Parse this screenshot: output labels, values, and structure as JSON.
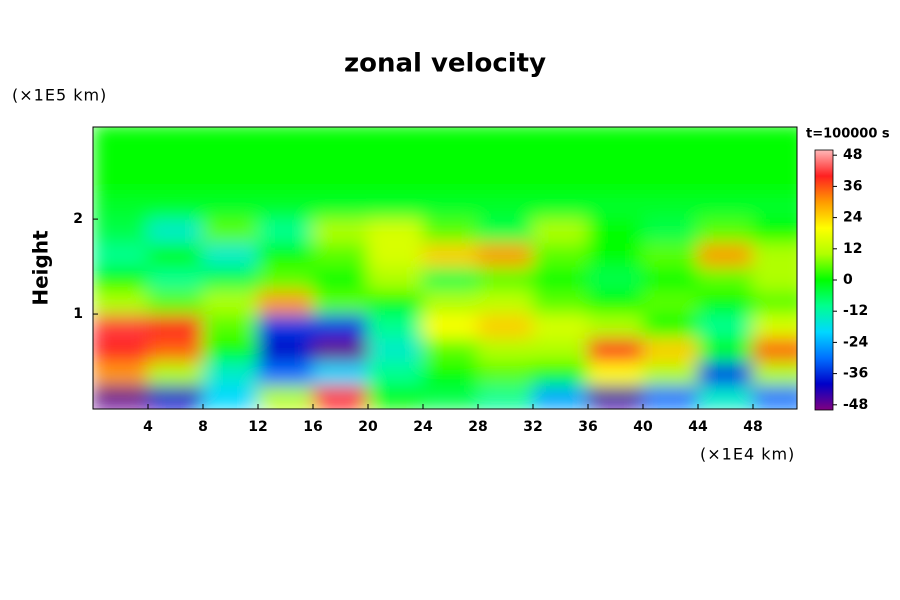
{
  "chart_data": {
    "type": "heatmap",
    "title": "zonal velocity",
    "y_unit_label": "(×1E5 km)",
    "x_unit_label": "(×1E4 km)",
    "y_label": "Height",
    "colorbar_title": "t=100000 s",
    "xlim": [
      0,
      51.2
    ],
    "ylim": [
      0,
      2.97
    ],
    "xticks": [
      4,
      8,
      12,
      16,
      20,
      24,
      28,
      32,
      36,
      40,
      44,
      48
    ],
    "yticks": [
      1,
      2
    ],
    "clim": [
      -50,
      50
    ],
    "cticks": [
      48,
      36,
      24,
      12,
      0,
      -12,
      -24,
      -36,
      -48
    ],
    "colormap": [
      "#800080",
      "#0000c8",
      "#0070ff",
      "#00d8ff",
      "#00ff90",
      "#00ff00",
      "#b0ff00",
      "#ffff00",
      "#ff9a00",
      "#ff2020",
      "#ffb8b8"
    ],
    "x": [
      2,
      6,
      10,
      14,
      18,
      22,
      26,
      30,
      34,
      38,
      42,
      46,
      50
    ],
    "y": [
      0.125,
      0.375,
      0.625,
      0.875,
      1.125,
      1.375,
      1.625,
      1.875,
      2.125,
      2.375,
      2.625,
      2.875
    ],
    "z": [
      [
        -48,
        -40,
        -20,
        10,
        40,
        0,
        -5,
        -10,
        -25,
        -45,
        -30,
        -15,
        -30
      ],
      [
        30,
        10,
        -15,
        -30,
        -20,
        -10,
        0,
        5,
        0,
        20,
        10,
        -35,
        10
      ],
      [
        40,
        35,
        0,
        -40,
        -48,
        -15,
        5,
        10,
        10,
        40,
        25,
        0,
        35
      ],
      [
        42,
        40,
        5,
        -35,
        -35,
        -10,
        20,
        25,
        15,
        10,
        0,
        -10,
        15
      ],
      [
        10,
        5,
        10,
        30,
        5,
        0,
        10,
        12,
        5,
        0,
        5,
        0,
        5
      ],
      [
        0,
        -10,
        -5,
        5,
        0,
        10,
        -5,
        5,
        0,
        -5,
        0,
        5,
        10
      ],
      [
        -10,
        0,
        -15,
        0,
        5,
        15,
        25,
        30,
        5,
        0,
        5,
        30,
        10
      ],
      [
        -5,
        -15,
        5,
        -10,
        10,
        15,
        5,
        -5,
        10,
        0,
        -5,
        5,
        0
      ],
      [
        -3,
        -3,
        -3,
        -3,
        -3,
        -3,
        -3,
        -3,
        -3,
        -3,
        -3,
        -3,
        -3
      ],
      [
        0,
        0,
        0,
        0,
        0,
        0,
        0,
        0,
        0,
        0,
        0,
        0,
        0
      ],
      [
        0,
        0,
        0,
        0,
        0,
        0,
        0,
        0,
        0,
        0,
        0,
        0,
        0
      ],
      [
        0,
        0,
        0,
        0,
        0,
        0,
        0,
        0,
        0,
        0,
        0,
        0,
        0
      ]
    ]
  }
}
